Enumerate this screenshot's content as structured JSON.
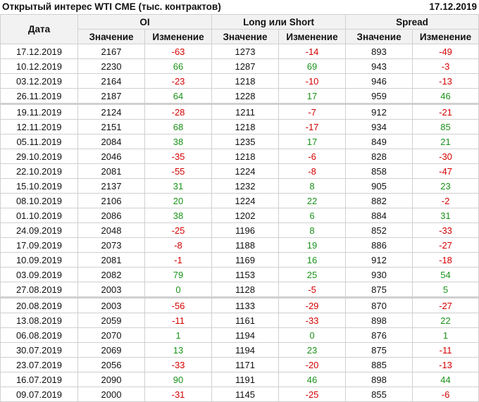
{
  "title": "Открытый интерес WTI CME (тыс. контрактов)",
  "date": "17.12.2019",
  "headers": {
    "date": "Дата",
    "oi": "OI",
    "ls": "Long или Short",
    "spread": "Spread",
    "value": "Значение",
    "change": "Изменение"
  },
  "colors": {
    "negative": "#d40000",
    "positive": "#1a931a"
  },
  "rows": [
    [
      "17.12.2019",
      "2167",
      "-63",
      "1273",
      "-14",
      "893",
      "-49"
    ],
    [
      "10.12.2019",
      "2230",
      "66",
      "1287",
      "69",
      "943",
      "-3"
    ],
    [
      "03.12.2019",
      "2164",
      "-23",
      "1218",
      "-10",
      "946",
      "-13"
    ],
    [
      "26.11.2019",
      "2187",
      "64",
      "1228",
      "17",
      "959",
      "46"
    ],
    [
      "19.11.2019",
      "2124",
      "-28",
      "1211",
      "-7",
      "912",
      "-21"
    ],
    [
      "12.11.2019",
      "2151",
      "68",
      "1218",
      "-17",
      "934",
      "85"
    ],
    [
      "05.11.2019",
      "2084",
      "38",
      "1235",
      "17",
      "849",
      "21"
    ],
    [
      "29.10.2019",
      "2046",
      "-35",
      "1218",
      "-6",
      "828",
      "-30"
    ],
    [
      "22.10.2019",
      "2081",
      "-55",
      "1224",
      "-8",
      "858",
      "-47"
    ],
    [
      "15.10.2019",
      "2137",
      "31",
      "1232",
      "8",
      "905",
      "23"
    ],
    [
      "08.10.2019",
      "2106",
      "20",
      "1224",
      "22",
      "882",
      "-2"
    ],
    [
      "01.10.2019",
      "2086",
      "38",
      "1202",
      "6",
      "884",
      "31"
    ],
    [
      "24.09.2019",
      "2048",
      "-25",
      "1196",
      "8",
      "852",
      "-33"
    ],
    [
      "17.09.2019",
      "2073",
      "-8",
      "1188",
      "19",
      "886",
      "-27"
    ],
    [
      "10.09.2019",
      "2081",
      "-1",
      "1169",
      "16",
      "912",
      "-18"
    ],
    [
      "03.09.2019",
      "2082",
      "79",
      "1153",
      "25",
      "930",
      "54"
    ],
    [
      "27.08.2019",
      "2003",
      "0",
      "1128",
      "-5",
      "875",
      "5"
    ],
    [
      "20.08.2019",
      "2003",
      "-56",
      "1133",
      "-29",
      "870",
      "-27"
    ],
    [
      "13.08.2019",
      "2059",
      "-11",
      "1161",
      "-33",
      "898",
      "22"
    ],
    [
      "06.08.2019",
      "2070",
      "1",
      "1194",
      "0",
      "876",
      "1"
    ],
    [
      "30.07.2019",
      "2069",
      "13",
      "1194",
      "23",
      "875",
      "-11"
    ],
    [
      "23.07.2019",
      "2056",
      "-33",
      "1171",
      "-20",
      "885",
      "-13"
    ],
    [
      "16.07.2019",
      "2090",
      "90",
      "1191",
      "46",
      "898",
      "44"
    ],
    [
      "09.07.2019",
      "2000",
      "-31",
      "1145",
      "-25",
      "855",
      "-6"
    ]
  ],
  "separator_before": [
    "19.11.2019",
    "20.08.2019"
  ]
}
